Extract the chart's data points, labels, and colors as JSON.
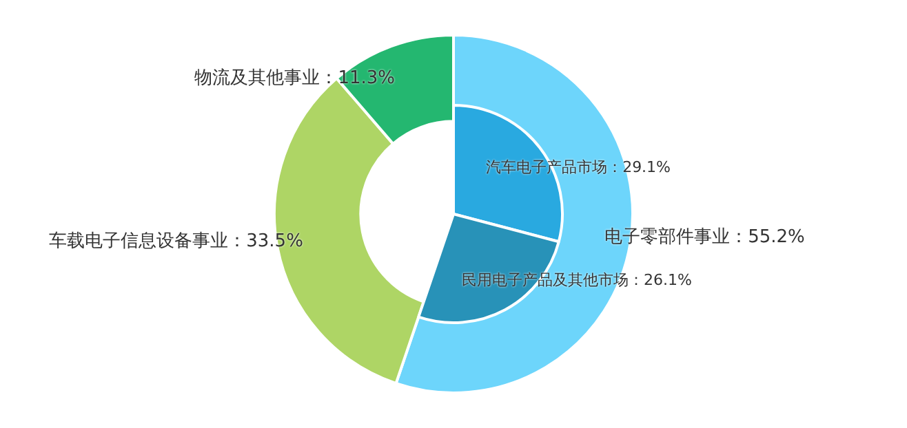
{
  "chart_data": [
    {
      "type": "donut",
      "categories": [
        "电子零部件事业",
        "车载电子信息设备事业",
        "物流及其他事业"
      ],
      "values": [
        55.2,
        33.5,
        11.3
      ],
      "value_labels": [
        "55.2%",
        "33.5%",
        "11.3%"
      ],
      "colors": [
        "#6dd5fb",
        "#aed565",
        "#24b770"
      ],
      "legend": false
    },
    {
      "type": "pie",
      "categories": [
        "汽车电子产品市场",
        "民用电子产品及其他市场"
      ],
      "values": [
        29.1,
        26.1
      ],
      "value_labels": [
        "29.1%",
        "26.1%"
      ],
      "colors": [
        "#29a9e0",
        "#2892b8"
      ],
      "legend": false
    }
  ]
}
